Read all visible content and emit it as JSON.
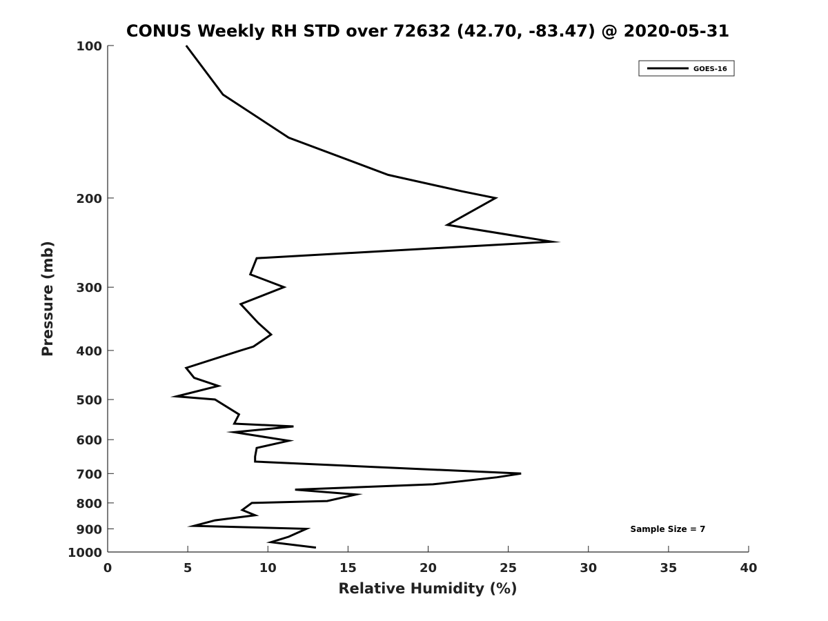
{
  "chart_data": {
    "type": "line",
    "title": "CONUS Weekly RH STD over 72632 (42.70, -83.47) @ 2020-05-31",
    "xlabel": "Relative Humidity (%)",
    "ylabel": "Pressure (mb)",
    "xlim": [
      0,
      40
    ],
    "ylim": [
      100,
      1000
    ],
    "y_scale": "log",
    "y_reversed": true,
    "grid": false,
    "legend_position": "top-right",
    "x_ticks": [
      "0",
      "5",
      "10",
      "15",
      "20",
      "25",
      "30",
      "35",
      "40"
    ],
    "y_ticks": [
      "100",
      "200",
      "300",
      "400",
      "500",
      "600",
      "700",
      "800",
      "900",
      "1000"
    ],
    "series": [
      {
        "name": "GOES-16",
        "color": "#000000",
        "points": [
          [
            4.9,
            100
          ],
          [
            7.2,
            125
          ],
          [
            11.3,
            152
          ],
          [
            17.5,
            180
          ],
          [
            22.1,
            194
          ],
          [
            24.2,
            200
          ],
          [
            21.2,
            226
          ],
          [
            27.7,
            244
          ],
          [
            9.3,
            263
          ],
          [
            8.9,
            283
          ],
          [
            11.0,
            300
          ],
          [
            8.3,
            324
          ],
          [
            9.4,
            353
          ],
          [
            10.2,
            372
          ],
          [
            9.1,
            393
          ],
          [
            8.3,
            400
          ],
          [
            4.9,
            433
          ],
          [
            5.4,
            453
          ],
          [
            6.9,
            470
          ],
          [
            4.3,
            493
          ],
          [
            6.7,
            500
          ],
          [
            8.2,
            535
          ],
          [
            7.9,
            558
          ],
          [
            11.6,
            565
          ],
          [
            7.9,
            580
          ],
          [
            11.3,
            603
          ],
          [
            9.3,
            623
          ],
          [
            9.2,
            648
          ],
          [
            9.2,
            663
          ],
          [
            25.8,
            700
          ],
          [
            24.3,
            712
          ],
          [
            20.3,
            735
          ],
          [
            11.7,
            753
          ],
          [
            15.5,
            770
          ],
          [
            13.7,
            793
          ],
          [
            9.0,
            800
          ],
          [
            8.4,
            826
          ],
          [
            9.2,
            846
          ],
          [
            6.7,
            866
          ],
          [
            5.4,
            888
          ],
          [
            12.4,
            900
          ],
          [
            11.3,
            933
          ],
          [
            10.2,
            956
          ],
          [
            13.0,
            980
          ]
        ]
      }
    ],
    "annotations": [
      "Sample Size = 7"
    ]
  }
}
